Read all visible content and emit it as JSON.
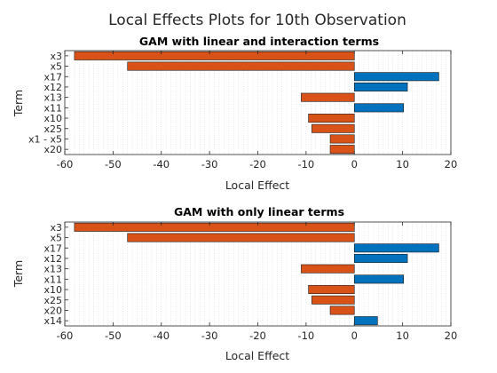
{
  "figure": {
    "title": "Local Effects Plots for 10th Observation"
  },
  "colors": {
    "negative": "#D95319",
    "positive": "#0072BD",
    "text": "#262626",
    "axis": "#262626",
    "grid": "#d9d9d9"
  },
  "chart_data": [
    {
      "type": "bar",
      "orientation": "horizontal",
      "title": "GAM with linear and interaction terms",
      "xlabel": "Local Effect",
      "ylabel": "Term",
      "xlim": [
        -60,
        20
      ],
      "xticks": [
        -60,
        -50,
        -40,
        -30,
        -20,
        -10,
        0,
        10,
        20
      ],
      "grid": true,
      "categories": [
        "x3",
        "x5",
        "x17",
        "x12",
        "x13",
        "x11",
        "x10",
        "x25",
        "x1 - x5",
        "x20"
      ],
      "values": [
        -58,
        -47,
        17.5,
        11,
        -11,
        10.2,
        -9.5,
        -8.8,
        -5,
        -5
      ]
    },
    {
      "type": "bar",
      "orientation": "horizontal",
      "title": "GAM with only linear terms",
      "xlabel": "Local Effect",
      "ylabel": "Term",
      "xlim": [
        -60,
        20
      ],
      "xticks": [
        -60,
        -50,
        -40,
        -30,
        -20,
        -10,
        0,
        10,
        20
      ],
      "grid": true,
      "categories": [
        "x3",
        "x5",
        "x17",
        "x12",
        "x13",
        "x11",
        "x10",
        "x25",
        "x20",
        "x14"
      ],
      "values": [
        -58,
        -47,
        17.5,
        11,
        -11,
        10.2,
        -9.5,
        -8.8,
        -5,
        4.8
      ]
    }
  ]
}
